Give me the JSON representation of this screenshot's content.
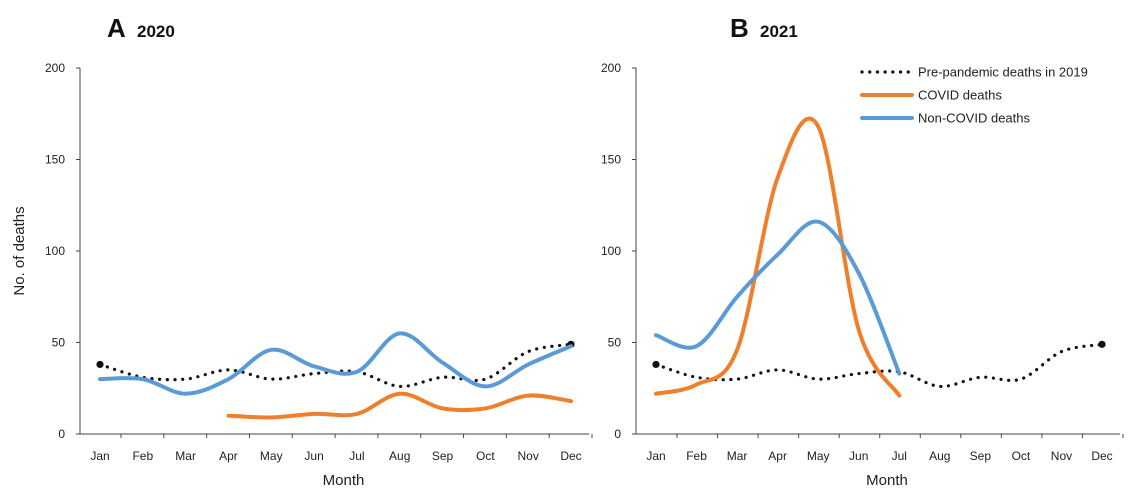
{
  "chart_data": [
    {
      "type": "line",
      "panel_label": "A",
      "title": "2020",
      "xlabel": "Month",
      "ylabel": "No. of deaths",
      "categories": [
        "Jan",
        "Feb",
        "Mar",
        "Apr",
        "May",
        "Jun",
        "Jul",
        "Aug",
        "Sep",
        "Oct",
        "Nov",
        "Dec"
      ],
      "ylim": [
        0,
        200
      ],
      "yticks": [
        "0",
        "50",
        "100",
        "150",
        "200"
      ],
      "grid": false,
      "series": [
        {
          "name": "Pre-pandemic deaths in 2019",
          "style": "dotted",
          "color": "#111111",
          "values": [
            38,
            31,
            30,
            35,
            30,
            33,
            34,
            26,
            31,
            30,
            45,
            49
          ]
        },
        {
          "name": "COVID deaths",
          "style": "solid",
          "color": "#f07f2c",
          "values": [
            null,
            null,
            null,
            10,
            9,
            11,
            11,
            22,
            14,
            14,
            21,
            18
          ]
        },
        {
          "name": "Non-COVID deaths",
          "style": "solid",
          "color": "#5b9bd5",
          "values": [
            30,
            30,
            22,
            30,
            46,
            37,
            34,
            55,
            39,
            26,
            38,
            48
          ]
        }
      ]
    },
    {
      "type": "line",
      "panel_label": "B",
      "title": "2021",
      "xlabel": "Month",
      "ylabel": "",
      "categories": [
        "Jan",
        "Feb",
        "Mar",
        "Apr",
        "May",
        "Jun",
        "Jul",
        "Aug",
        "Sep",
        "Oct",
        "Nov",
        "Dec"
      ],
      "ylim": [
        0,
        200
      ],
      "yticks": [
        "0",
        "50",
        "100",
        "150",
        "200"
      ],
      "grid": false,
      "legend_position": "top-right",
      "series": [
        {
          "name": "Pre-pandemic deaths in 2019",
          "style": "dotted",
          "color": "#111111",
          "values": [
            38,
            31,
            30,
            35,
            30,
            33,
            34,
            26,
            31,
            30,
            45,
            49
          ]
        },
        {
          "name": "COVID deaths",
          "style": "solid",
          "color": "#f07f2c",
          "values": [
            22,
            27,
            46,
            140,
            168,
            57,
            21,
            null,
            null,
            null,
            null,
            null
          ]
        },
        {
          "name": "Non-COVID deaths",
          "style": "solid",
          "color": "#5b9bd5",
          "values": [
            54,
            48,
            75,
            98,
            116,
            88,
            33,
            null,
            null,
            null,
            null,
            null
          ]
        }
      ]
    }
  ]
}
